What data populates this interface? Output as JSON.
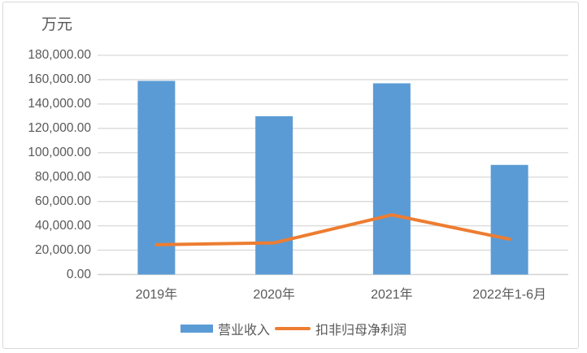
{
  "chart_data": {
    "type": "combo",
    "unit_label": "万元",
    "categories": [
      "2019年",
      "2020年",
      "2021年",
      "2022年1-6月"
    ],
    "series": [
      {
        "name": "营业收入",
        "type": "bar",
        "color": "#5B9BD5",
        "values": [
          159000,
          130000,
          157000,
          90000
        ]
      },
      {
        "name": "扣非归母净利润",
        "type": "line",
        "color": "#ED7D31",
        "values": [
          24500,
          26000,
          49000,
          29000
        ]
      }
    ],
    "ylim": [
      0,
      180000
    ],
    "y_tick_step": 20000,
    "y_tick_labels": [
      "0.00",
      "20,000.00",
      "40,000.00",
      "60,000.00",
      "80,000.00",
      "100,000.00",
      "120,000.00",
      "140,000.00",
      "160,000.00",
      "180,000.00"
    ],
    "grid": "horizontal",
    "legend_position": "bottom",
    "colors": {
      "grid": "#D9D9D9",
      "axis_line": "#D3D3D3",
      "axis_text": "#595959",
      "frame_border": "#D9D9D9",
      "background": "#FFFFFF"
    }
  }
}
